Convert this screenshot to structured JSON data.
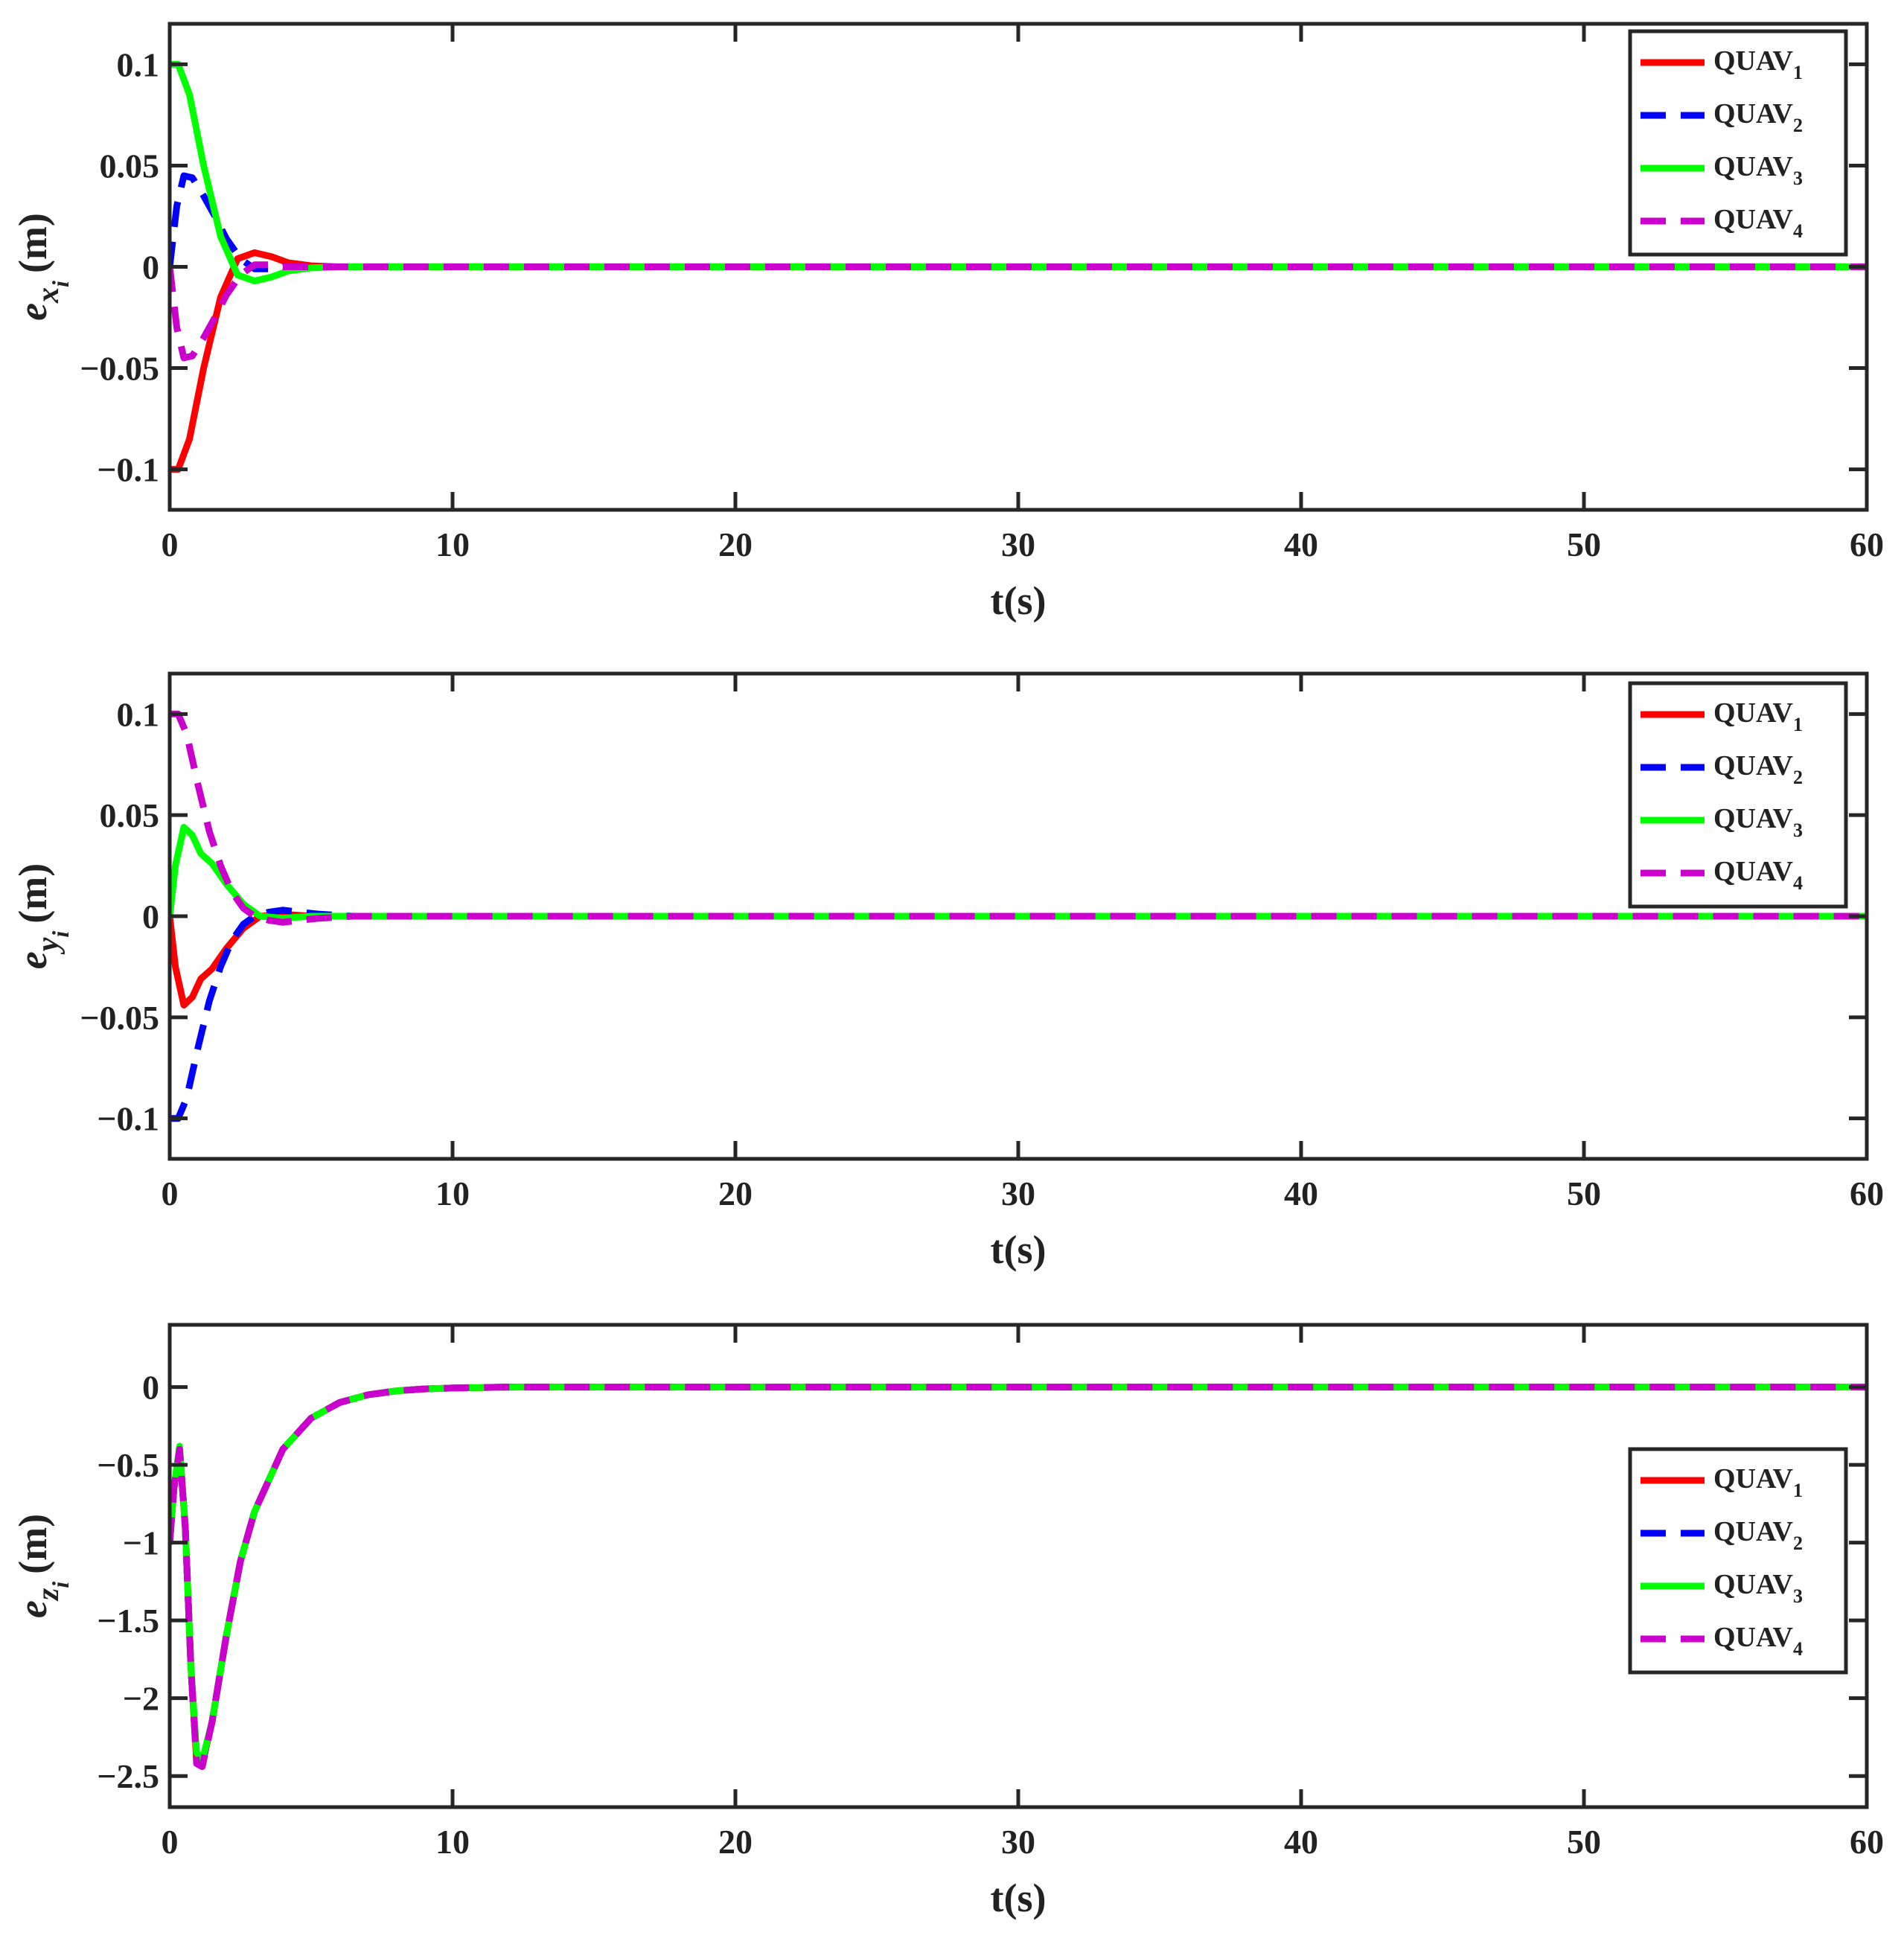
{
  "chart_data": [
    {
      "type": "line",
      "xlabel": "t(s)",
      "ylabel": {
        "base": "e",
        "sub": "x",
        "subsub": "i",
        "unit": "(m)"
      },
      "xlim": [
        0,
        60
      ],
      "ylim": [
        -0.12,
        0.12
      ],
      "xticks": [
        0,
        10,
        20,
        30,
        40,
        50,
        60
      ],
      "xtick_labels": [
        "0",
        "10",
        "20",
        "30",
        "40",
        "50",
        "60"
      ],
      "yticks": [
        -0.1,
        -0.05,
        0,
        0.05,
        0.1
      ],
      "ytick_labels": [
        "−0.1",
        "−0.05",
        "0",
        "0.05",
        "0.1"
      ],
      "grid": false,
      "legend_position": "top-right",
      "series": [
        {
          "name": "QUAV",
          "sub": "1",
          "color": "#ff0000",
          "dashed": false,
          "x": [
            0,
            0.3,
            0.7,
            1.2,
            1.8,
            2.4,
            3.0,
            3.6,
            4.2,
            5.0,
            6.0,
            8.0,
            60
          ],
          "y": [
            -0.1,
            -0.1,
            -0.085,
            -0.05,
            -0.015,
            0.004,
            0.007,
            0.005,
            0.002,
            0.0005,
            0,
            0,
            0
          ]
        },
        {
          "name": "QUAV",
          "sub": "2",
          "color": "#0000ff",
          "dashed": true,
          "x": [
            0,
            0.25,
            0.5,
            0.8,
            1.2,
            1.6,
            2.0,
            2.5,
            3.0,
            3.5,
            4.0,
            5.0,
            6.0,
            8.0,
            60
          ],
          "y": [
            0,
            0.03,
            0.045,
            0.044,
            0.035,
            0.025,
            0.014,
            0.004,
            -0.001,
            -0.001,
            0,
            0,
            0,
            0,
            0
          ]
        },
        {
          "name": "QUAV",
          "sub": "3",
          "color": "#00ff00",
          "dashed": false,
          "x": [
            0,
            0.3,
            0.7,
            1.2,
            1.8,
            2.4,
            3.0,
            3.6,
            4.2,
            5.0,
            6.0,
            8.0,
            60
          ],
          "y": [
            0.1,
            0.1,
            0.085,
            0.05,
            0.015,
            -0.004,
            -0.007,
            -0.005,
            -0.002,
            -0.0005,
            0,
            0,
            0
          ]
        },
        {
          "name": "QUAV",
          "sub": "4",
          "color": "#cc00cc",
          "dashed": true,
          "x": [
            0,
            0.25,
            0.5,
            0.8,
            1.2,
            1.6,
            2.0,
            2.5,
            3.0,
            3.5,
            4.0,
            5.0,
            6.0,
            8.0,
            60
          ],
          "y": [
            0,
            -0.03,
            -0.045,
            -0.044,
            -0.035,
            -0.025,
            -0.014,
            -0.004,
            0.001,
            0.001,
            0,
            0,
            0,
            0,
            0
          ]
        }
      ]
    },
    {
      "type": "line",
      "xlabel": "t(s)",
      "ylabel": {
        "base": "e",
        "sub": "y",
        "subsub": "i",
        "unit": "(m)"
      },
      "xlim": [
        0,
        60
      ],
      "ylim": [
        -0.12,
        0.12
      ],
      "xticks": [
        0,
        10,
        20,
        30,
        40,
        50,
        60
      ],
      "xtick_labels": [
        "0",
        "10",
        "20",
        "30",
        "40",
        "50",
        "60"
      ],
      "yticks": [
        -0.1,
        -0.05,
        0,
        0.05,
        0.1
      ],
      "ytick_labels": [
        "−0.1",
        "−0.05",
        "0",
        "0.05",
        "0.1"
      ],
      "grid": false,
      "legend_position": "top-right",
      "series": [
        {
          "name": "QUAV",
          "sub": "1",
          "color": "#ff0000",
          "dashed": false,
          "x": [
            0,
            0.2,
            0.5,
            0.8,
            1.1,
            1.5,
            2.0,
            2.6,
            3.2,
            4.0,
            5.0,
            6.0,
            60
          ],
          "y": [
            0,
            -0.025,
            -0.044,
            -0.04,
            -0.031,
            -0.026,
            -0.016,
            -0.006,
            0.0,
            0.001,
            0,
            0,
            0
          ]
        },
        {
          "name": "QUAV",
          "sub": "2",
          "color": "#0000ff",
          "dashed": true,
          "x": [
            0,
            0.3,
            0.6,
            1.0,
            1.4,
            1.8,
            2.2,
            2.6,
            3.0,
            3.5,
            4.0,
            4.6,
            5.3,
            6.5,
            60
          ],
          "y": [
            -0.1,
            -0.1,
            -0.09,
            -0.065,
            -0.042,
            -0.025,
            -0.012,
            -0.004,
            0.0,
            0.002,
            0.003,
            0.002,
            0.001,
            0,
            0
          ]
        },
        {
          "name": "QUAV",
          "sub": "3",
          "color": "#00ff00",
          "dashed": false,
          "x": [
            0,
            0.2,
            0.5,
            0.8,
            1.1,
            1.5,
            2.0,
            2.6,
            3.2,
            4.0,
            5.0,
            6.0,
            60
          ],
          "y": [
            0,
            0.025,
            0.044,
            0.04,
            0.031,
            0.026,
            0.016,
            0.006,
            0.0,
            -0.001,
            0,
            0,
            0
          ]
        },
        {
          "name": "QUAV",
          "sub": "4",
          "color": "#cc00cc",
          "dashed": true,
          "x": [
            0,
            0.3,
            0.6,
            1.0,
            1.4,
            1.8,
            2.2,
            2.6,
            3.0,
            3.5,
            4.0,
            4.6,
            5.3,
            6.5,
            60
          ],
          "y": [
            0.1,
            0.1,
            0.09,
            0.065,
            0.042,
            0.025,
            0.012,
            0.004,
            0.0,
            -0.002,
            -0.003,
            -0.002,
            -0.001,
            0,
            0
          ]
        }
      ]
    },
    {
      "type": "line",
      "xlabel": "t(s)",
      "ylabel": {
        "base": "e",
        "sub": "z",
        "subsub": "i",
        "unit": "(m)"
      },
      "xlim": [
        0,
        60
      ],
      "ylim": [
        -2.7,
        0.4
      ],
      "xticks": [
        0,
        10,
        20,
        30,
        40,
        50,
        60
      ],
      "xtick_labels": [
        "0",
        "10",
        "20",
        "30",
        "40",
        "50",
        "60"
      ],
      "yticks": [
        -2.5,
        -2,
        -1.5,
        -1,
        -0.5,
        0
      ],
      "ytick_labels": [
        "−2.5",
        "−2",
        "−1.5",
        "−1",
        "−0.5",
        "0"
      ],
      "grid": false,
      "legend_position": "right",
      "series": [
        {
          "name": "QUAV",
          "sub": "1",
          "color": "#ff0000",
          "dashed": false,
          "x": [
            0,
            0.15,
            0.35,
            0.55,
            0.75,
            0.95,
            1.15,
            1.5,
            2.0,
            2.5,
            3.0,
            4.0,
            5.0,
            6.0,
            7.0,
            8.0,
            9.0,
            10.0,
            12.0,
            60
          ],
          "y": [
            -1.0,
            -0.65,
            -0.4,
            -0.9,
            -1.8,
            -2.4,
            -2.42,
            -2.15,
            -1.6,
            -1.12,
            -0.8,
            -0.4,
            -0.2,
            -0.1,
            -0.05,
            -0.025,
            -0.012,
            -0.006,
            0,
            0
          ]
        },
        {
          "name": "QUAV",
          "sub": "2",
          "color": "#0000ff",
          "dashed": true,
          "x": [
            0,
            0.15,
            0.35,
            0.55,
            0.75,
            0.95,
            1.15,
            1.5,
            2.0,
            2.5,
            3.0,
            4.0,
            5.0,
            6.0,
            7.0,
            8.0,
            9.0,
            10.0,
            12.0,
            60
          ],
          "y": [
            -1.0,
            -0.65,
            -0.4,
            -0.9,
            -1.8,
            -2.4,
            -2.42,
            -2.15,
            -1.6,
            -1.12,
            -0.8,
            -0.4,
            -0.2,
            -0.1,
            -0.05,
            -0.025,
            -0.012,
            -0.006,
            0,
            0
          ]
        },
        {
          "name": "QUAV",
          "sub": "3",
          "color": "#00ff00",
          "dashed": false,
          "x": [
            0,
            0.15,
            0.35,
            0.55,
            0.75,
            0.95,
            1.15,
            1.5,
            2.0,
            2.5,
            3.0,
            4.0,
            5.0,
            6.0,
            7.0,
            8.0,
            9.0,
            10.0,
            12.0,
            60
          ],
          "y": [
            -1.0,
            -0.65,
            -0.38,
            -0.9,
            -1.8,
            -2.35,
            -2.4,
            -2.15,
            -1.6,
            -1.12,
            -0.8,
            -0.4,
            -0.2,
            -0.1,
            -0.05,
            -0.025,
            -0.012,
            -0.006,
            0,
            0
          ]
        },
        {
          "name": "QUAV",
          "sub": "4",
          "color": "#cc00cc",
          "dashed": true,
          "x": [
            0,
            0.15,
            0.35,
            0.55,
            0.75,
            0.95,
            1.15,
            1.5,
            2.0,
            2.5,
            3.0,
            4.0,
            5.0,
            6.0,
            7.0,
            8.0,
            9.0,
            10.0,
            12.0,
            60
          ],
          "y": [
            -1.0,
            -0.65,
            -0.4,
            -0.9,
            -1.8,
            -2.42,
            -2.44,
            -2.15,
            -1.6,
            -1.12,
            -0.8,
            -0.4,
            -0.2,
            -0.1,
            -0.05,
            -0.025,
            -0.012,
            -0.006,
            0,
            0
          ]
        }
      ]
    }
  ]
}
